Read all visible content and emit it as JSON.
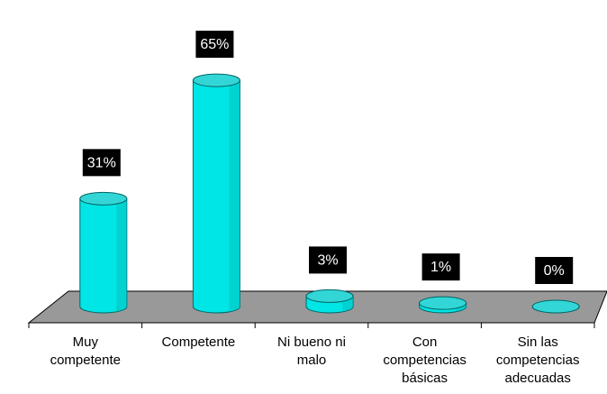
{
  "chart_data": {
    "type": "bar",
    "style": "3d-cylinder",
    "categories": [
      "Muy\ncompetente",
      "Competente",
      "Ni bueno ni\nmalo",
      "Con\ncompetencias\nbásicas",
      "Sin las\ncompetencias\nadecuadas"
    ],
    "values": [
      31,
      65,
      3,
      1,
      0
    ],
    "data_labels": [
      "31%",
      "65%",
      "3%",
      "1%",
      "0%"
    ],
    "ylim": [
      0,
      70
    ],
    "grid": false,
    "legend": "none",
    "colors": {
      "bar_face": "#00e5e5",
      "bar_top": "#33d6d6",
      "bar_edge": "#006666",
      "floor": "#999999",
      "label_bg": "#000000",
      "label_text": "#ffffff"
    }
  }
}
